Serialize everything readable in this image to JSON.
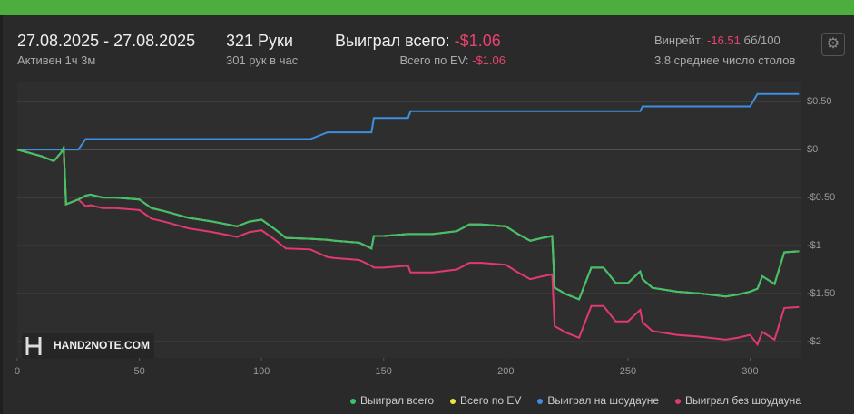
{
  "header": {
    "date_range": "27.08.2025 - 27.08.2025",
    "active": "Активен 1ч 3м",
    "hands": "321 Руки",
    "hands_per_hour": "301 рук в час",
    "won_label": "Выиграл всего:",
    "won_value": "-$1.06",
    "ev_label": "Всего по EV:",
    "ev_value": "-$1.06",
    "winrate_label": "Винрейт:",
    "winrate_value": "-16.51",
    "winrate_unit": "бб/100",
    "tables": "3.8 среднее число столов"
  },
  "watermark": "HAND2NOTE.COM",
  "chart_data": {
    "type": "line",
    "x": [
      0,
      10,
      15,
      18,
      19,
      20,
      25,
      28,
      30,
      35,
      40,
      50,
      55,
      60,
      70,
      80,
      90,
      95,
      100,
      105,
      110,
      120,
      127,
      130,
      140,
      145,
      146,
      150,
      160,
      161,
      170,
      180,
      185,
      190,
      200,
      205,
      210,
      215,
      219,
      220,
      225,
      230,
      235,
      240,
      245,
      250,
      255,
      256,
      260,
      270,
      280,
      290,
      295,
      300,
      303,
      305,
      310,
      314,
      320
    ],
    "series": [
      {
        "name": "Выиграл всего",
        "color": "#3fc06b",
        "values": [
          0,
          -0.07,
          -0.12,
          -0.03,
          0.02,
          -0.57,
          -0.52,
          -0.48,
          -0.47,
          -0.5,
          -0.5,
          -0.52,
          -0.61,
          -0.64,
          -0.71,
          -0.75,
          -0.8,
          -0.75,
          -0.73,
          -0.82,
          -0.92,
          -0.93,
          -0.94,
          -0.95,
          -0.97,
          -1.03,
          -0.9,
          -0.9,
          -0.88,
          -0.88,
          -0.88,
          -0.85,
          -0.78,
          -0.78,
          -0.8,
          -0.88,
          -0.95,
          -0.92,
          -0.9,
          -1.44,
          -1.51,
          -1.56,
          -1.23,
          -1.23,
          -1.39,
          -1.39,
          -1.27,
          -1.35,
          -1.44,
          -1.48,
          -1.5,
          -1.53,
          -1.51,
          -1.48,
          -1.45,
          -1.32,
          -1.4,
          -1.07,
          -1.06
        ]
      },
      {
        "name": "Всего по EV",
        "color": "#f2e33c",
        "values": [
          0,
          -0.07,
          -0.12,
          -0.03,
          0.02,
          -0.57,
          -0.52,
          -0.48,
          -0.47,
          -0.5,
          -0.5,
          -0.52,
          -0.61,
          -0.64,
          -0.71,
          -0.75,
          -0.8,
          -0.75,
          -0.73,
          -0.82,
          -0.92,
          -0.93,
          -0.94,
          -0.95,
          -0.97,
          -1.03,
          -0.9,
          -0.9,
          -0.88,
          -0.88,
          -0.88,
          -0.85,
          -0.78,
          -0.78,
          -0.8,
          -0.88,
          -0.95,
          -0.92,
          -0.9,
          -1.44,
          -1.51,
          -1.56,
          -1.23,
          -1.23,
          -1.39,
          -1.39,
          -1.27,
          -1.35,
          -1.44,
          -1.48,
          -1.5,
          -1.53,
          -1.51,
          -1.48,
          -1.45,
          -1.32,
          -1.4,
          -1.07,
          -1.06
        ]
      },
      {
        "name": "Выиграл на шоудауне",
        "color": "#3d8fe0",
        "values": [
          0,
          0,
          0,
          0,
          0,
          0,
          0,
          0.11,
          0.11,
          0.11,
          0.11,
          0.11,
          0.11,
          0.11,
          0.11,
          0.11,
          0.11,
          0.11,
          0.11,
          0.11,
          0.11,
          0.11,
          0.18,
          0.18,
          0.18,
          0.18,
          0.33,
          0.33,
          0.33,
          0.4,
          0.4,
          0.4,
          0.4,
          0.4,
          0.4,
          0.4,
          0.4,
          0.4,
          0.4,
          0.4,
          0.4,
          0.4,
          0.4,
          0.4,
          0.4,
          0.4,
          0.4,
          0.45,
          0.45,
          0.45,
          0.45,
          0.45,
          0.45,
          0.45,
          0.58,
          0.58,
          0.58,
          0.58,
          0.58
        ]
      },
      {
        "name": "Выиграл без шоудауна",
        "color": "#e23a6c",
        "values": [
          0,
          -0.07,
          -0.12,
          -0.03,
          0.02,
          -0.57,
          -0.52,
          -0.59,
          -0.58,
          -0.61,
          -0.61,
          -0.63,
          -0.72,
          -0.75,
          -0.82,
          -0.86,
          -0.91,
          -0.86,
          -0.84,
          -0.93,
          -1.03,
          -1.04,
          -1.12,
          -1.13,
          -1.15,
          -1.21,
          -1.23,
          -1.23,
          -1.21,
          -1.28,
          -1.28,
          -1.25,
          -1.18,
          -1.18,
          -1.2,
          -1.28,
          -1.35,
          -1.32,
          -1.3,
          -1.84,
          -1.91,
          -1.96,
          -1.63,
          -1.63,
          -1.79,
          -1.79,
          -1.67,
          -1.8,
          -1.89,
          -1.93,
          -1.95,
          -1.98,
          -1.96,
          -1.93,
          -2.03,
          -1.9,
          -1.98,
          -1.65,
          -1.64
        ]
      }
    ],
    "xlim": [
      0,
      321
    ],
    "xticks": [
      0,
      50,
      100,
      150,
      200,
      250,
      300
    ],
    "ylim": [
      -2.17,
      0.7
    ],
    "yticks": [
      {
        "value": 0.5,
        "label": "$0.50"
      },
      {
        "value": 0,
        "label": "$0"
      },
      {
        "value": -0.5,
        "label": "-$0.50"
      },
      {
        "value": -1,
        "label": "-$1"
      },
      {
        "value": -1.5,
        "label": "-$1.50"
      },
      {
        "value": -2,
        "label": "-$2"
      }
    ],
    "grid": true
  }
}
